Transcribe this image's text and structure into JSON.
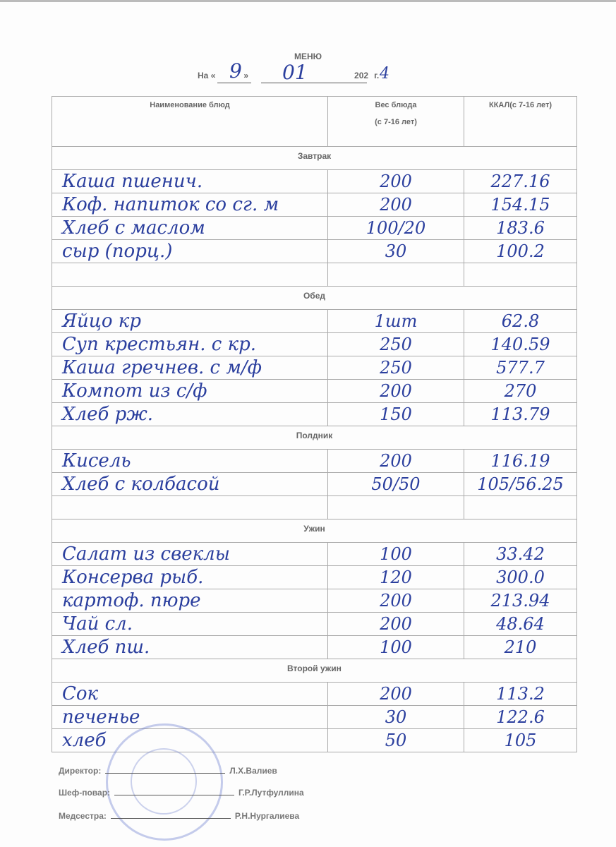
{
  "title": "МЕНЮ",
  "date": {
    "prefix": "На «",
    "day": "9",
    "mid": "»",
    "month": "01",
    "year_printed": "202",
    "year_hand": "4",
    "suffix": "г."
  },
  "headers": {
    "name": "Наименование блюд",
    "weight": "Вес блюда",
    "weight_sub": "(с 7-16 лет)",
    "kcal": "ККАЛ(с 7-16 лет)"
  },
  "sections": [
    {
      "label": "Завтрак",
      "rows": [
        {
          "name": "Каша пшенич.",
          "weight": "200",
          "kcal": "227.16"
        },
        {
          "name": "Коф. напиток со сг. м",
          "weight": "200",
          "kcal": "154.15"
        },
        {
          "name": "Хлеб с маслом",
          "weight": "100/20",
          "kcal": "183.6"
        },
        {
          "name": "сыр (порц.)",
          "weight": "30",
          "kcal": "100.2"
        },
        {
          "name": "",
          "weight": "",
          "kcal": ""
        }
      ]
    },
    {
      "label": "Обед",
      "rows": [
        {
          "name": "Яйцо кр",
          "weight": "1шт",
          "kcal": "62.8"
        },
        {
          "name": "Суп крестьян. с кр.",
          "weight": "250",
          "kcal": "140.59"
        },
        {
          "name": "Каша гречнев. с м/ф",
          "weight": "250",
          "kcal": "577.7"
        },
        {
          "name": "Компот из с/ф",
          "weight": "200",
          "kcal": "270"
        },
        {
          "name": "Хлеб рж.",
          "weight": "150",
          "kcal": "113.79"
        }
      ]
    },
    {
      "label": "Полдник",
      "rows": [
        {
          "name": "Кисель",
          "weight": "200",
          "kcal": "116.19"
        },
        {
          "name": "Хлеб с колбасой",
          "weight": "50/50",
          "kcal": "105/56.25"
        },
        {
          "name": "",
          "weight": "",
          "kcal": ""
        }
      ]
    },
    {
      "label": "Ужин",
      "rows": [
        {
          "name": "Салат из свеклы",
          "weight": "100",
          "kcal": "33.42"
        },
        {
          "name": "Консерва рыб.",
          "weight": "120",
          "kcal": "300.0"
        },
        {
          "name": "картоф. пюре",
          "weight": "200",
          "kcal": "213.94"
        },
        {
          "name": "Чай сл.",
          "weight": "200",
          "kcal": "48.64"
        },
        {
          "name": "Хлеб пш.",
          "weight": "100",
          "kcal": "210"
        }
      ]
    },
    {
      "label": "Второй ужин",
      "rows": [
        {
          "name": "Сок",
          "weight": "200",
          "kcal": "113.2"
        },
        {
          "name": "печенье",
          "weight": "30",
          "kcal": "122.6"
        },
        {
          "name": "хлеб",
          "weight": "50",
          "kcal": "105"
        }
      ]
    }
  ],
  "signatures": [
    {
      "role": "Директор:",
      "name": "Л.Х.Валиев"
    },
    {
      "role": "Шеф-повар:",
      "name": "Г.Р.Лутфуллина"
    },
    {
      "role": "Медсестра:",
      "name": "Р.Н.Нургалиева"
    }
  ]
}
